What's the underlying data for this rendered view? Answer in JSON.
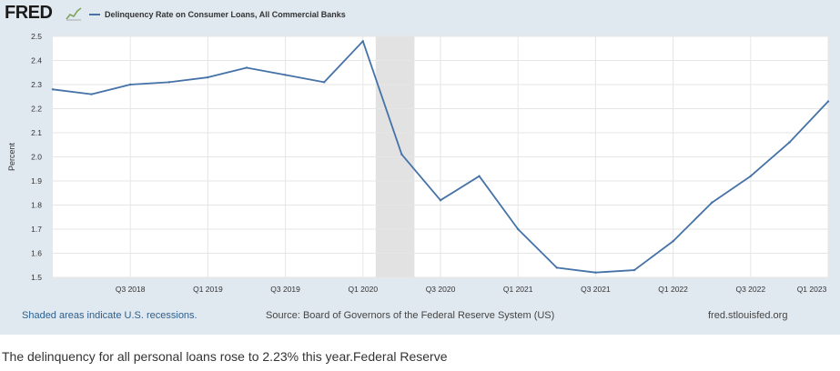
{
  "brand": {
    "logo_text": "FRED",
    "logo_icon": "chart-line-icon"
  },
  "colors": {
    "series": "#4572a7",
    "recession": "#e2e2e2",
    "panel": "#e1e9f0",
    "plot_bg": "#ffffff",
    "grid": "#e6e6e6"
  },
  "chart_data": {
    "type": "line",
    "title": "",
    "xlabel": "",
    "ylabel": "Percent",
    "ylim": [
      1.5,
      2.5
    ],
    "y_ticks": [
      "1.5",
      "1.6",
      "1.7",
      "1.8",
      "1.9",
      "2.0",
      "2.1",
      "2.2",
      "2.3",
      "2.4",
      "2.5"
    ],
    "x_ticks": [
      "Q3 2018",
      "Q1 2019",
      "Q3 2019",
      "Q1 2020",
      "Q3 2020",
      "Q1 2021",
      "Q3 2021",
      "Q1 2022",
      "Q3 2022",
      "Q1 2023"
    ],
    "x_quarters": [
      "Q1 2018",
      "Q2 2018",
      "Q3 2018",
      "Q4 2018",
      "Q1 2019",
      "Q2 2019",
      "Q3 2019",
      "Q4 2019",
      "Q1 2020",
      "Q2 2020",
      "Q3 2020",
      "Q4 2020",
      "Q1 2021",
      "Q2 2021",
      "Q3 2021",
      "Q4 2021",
      "Q1 2022",
      "Q2 2022",
      "Q3 2022",
      "Q4 2022",
      "Q1 2023"
    ],
    "series": [
      {
        "name": "Delinquency Rate on Consumer Loans, All Commercial Banks",
        "values": [
          2.28,
          2.26,
          2.3,
          2.31,
          2.33,
          2.37,
          2.34,
          2.31,
          2.48,
          2.01,
          1.82,
          1.92,
          1.7,
          1.54,
          1.52,
          1.53,
          1.65,
          1.81,
          1.92,
          2.06,
          2.23
        ]
      }
    ],
    "recessions": [
      {
        "start": "Q1 2020",
        "end": "Q2 2020"
      }
    ],
    "grid": true
  },
  "footer": {
    "shading_note": "Shaded areas indicate U.S. recessions.",
    "source": "Source: Board of Governors of the Federal Reserve System (US)",
    "url": "fred.stlouisfed.org"
  },
  "caption": "The delinquency for all personal loans rose to 2.23% this year.Federal Reserve"
}
